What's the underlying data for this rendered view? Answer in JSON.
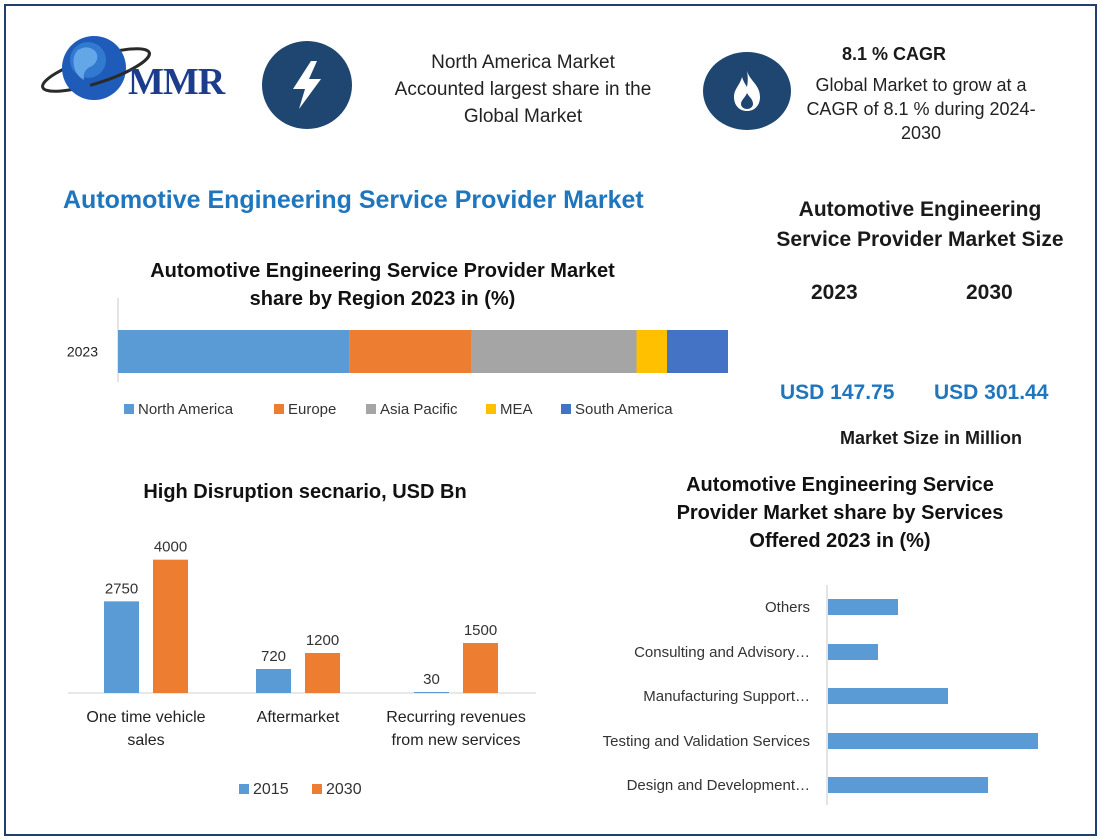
{
  "logo": {
    "text": "MMR"
  },
  "header": {
    "highlight_lines": [
      "North America Market",
      "Accounted largest share in the",
      "Global Market"
    ],
    "cagr_title": "8.1 % CAGR",
    "cagr_lines": [
      "Global Market to grow at a",
      "CAGR of 8.1 % during 2024-",
      "2030"
    ]
  },
  "main_title": "Automotive Engineering Service Provider Market",
  "market_size": {
    "title_lines": [
      "Automotive Engineering",
      "Service Provider Market Size"
    ],
    "year1": "2023",
    "year2": "2030",
    "value1": "USD 147.75",
    "value2": "USD 301.44",
    "unit_note": "Market Size in Million"
  },
  "colors": {
    "frame": "#1f3f6e",
    "icon_bg": "#1e4670",
    "title_blue": "#1f76bd",
    "north_america": "#5b9bd5",
    "europe": "#ed7d31",
    "asia_pacific": "#a5a5a5",
    "mea": "#ffc000",
    "south_america": "#4472c4"
  },
  "icons": [
    "globe-logo-icon",
    "lightning-bolt-icon",
    "flame-icon"
  ],
  "chart_data": [
    {
      "type": "bar",
      "orientation": "horizontal-stacked",
      "title_lines": [
        "Automotive Engineering Service Provider Market",
        "share by Region 2023 in (%)"
      ],
      "categories": [
        "2023"
      ],
      "series": [
        {
          "name": "North America",
          "values": [
            38
          ]
        },
        {
          "name": "Europe",
          "values": [
            20
          ]
        },
        {
          "name": "Asia Pacific",
          "values": [
            27
          ]
        },
        {
          "name": "MEA",
          "values": [
            5
          ]
        },
        {
          "name": "South America",
          "values": [
            10
          ]
        }
      ],
      "xlim": [
        0,
        100
      ],
      "legend": "bottom"
    },
    {
      "type": "bar",
      "title": "High Disruption secnario, USD Bn",
      "categories": [
        [
          "One time vehicle",
          "sales"
        ],
        [
          "Aftermarket"
        ],
        [
          "Recurring revenues",
          "from new services"
        ]
      ],
      "series": [
        {
          "name": "2015",
          "values": [
            2750,
            720,
            30
          ]
        },
        {
          "name": "2030",
          "values": [
            4000,
            1200,
            1500
          ]
        }
      ],
      "ylim": [
        0,
        4500
      ],
      "legend": "bottom"
    },
    {
      "type": "bar",
      "orientation": "horizontal",
      "title_lines": [
        "Automotive Engineering Service",
        "Provider Market share by Services",
        "Offered 2023 in (%)"
      ],
      "categories": [
        "Others",
        "Consulting and Advisory…",
        "Manufacturing Support…",
        "Testing and Validation Services",
        "Design and Development…"
      ],
      "values": [
        7,
        5,
        12,
        21,
        16
      ],
      "xlim": [
        0,
        22
      ]
    }
  ]
}
